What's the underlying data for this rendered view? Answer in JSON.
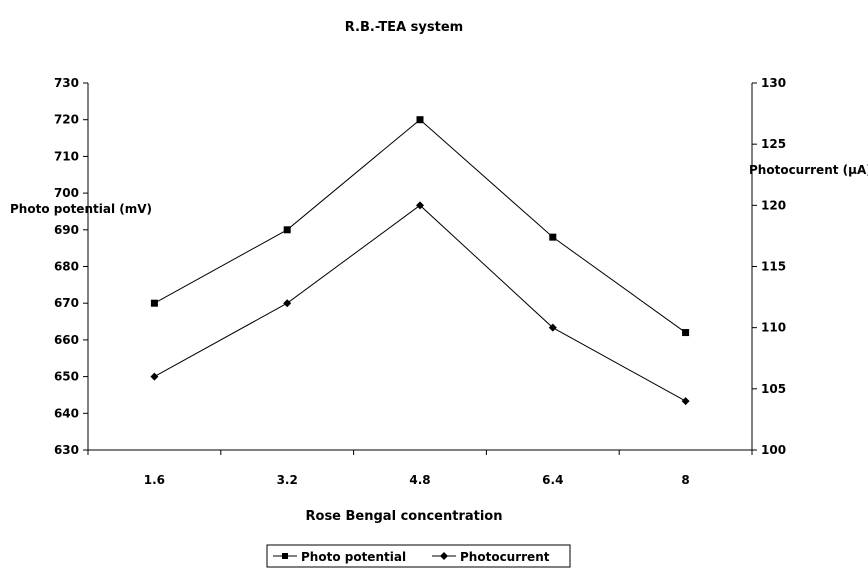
{
  "chart_data": {
    "type": "line",
    "title": "R.B.-TEA system",
    "xlabel": "Rose Bengal concentration",
    "ylabel_left": "Photo potential (mV)",
    "ylabel_right": "Photocurrent (µA)",
    "categories": [
      "1.6",
      "3.2",
      "4.8",
      "6.4",
      "8"
    ],
    "ylim_left": [
      630,
      730
    ],
    "yticks_left": [
      630,
      640,
      650,
      660,
      670,
      680,
      690,
      700,
      710,
      720,
      730
    ],
    "ylim_right": [
      100,
      130
    ],
    "yticks_right": [
      100,
      105,
      110,
      115,
      120,
      125,
      130
    ],
    "grid": false,
    "legend_position": "bottom",
    "series": [
      {
        "name": "Photo potential",
        "axis": "left",
        "marker": "square",
        "color": "#000000",
        "values": [
          670,
          690,
          720,
          688,
          662
        ]
      },
      {
        "name": "Photocurrent",
        "axis": "right",
        "marker": "diamond",
        "color": "#000000",
        "values": [
          106,
          112,
          120,
          110,
          104
        ]
      }
    ]
  }
}
